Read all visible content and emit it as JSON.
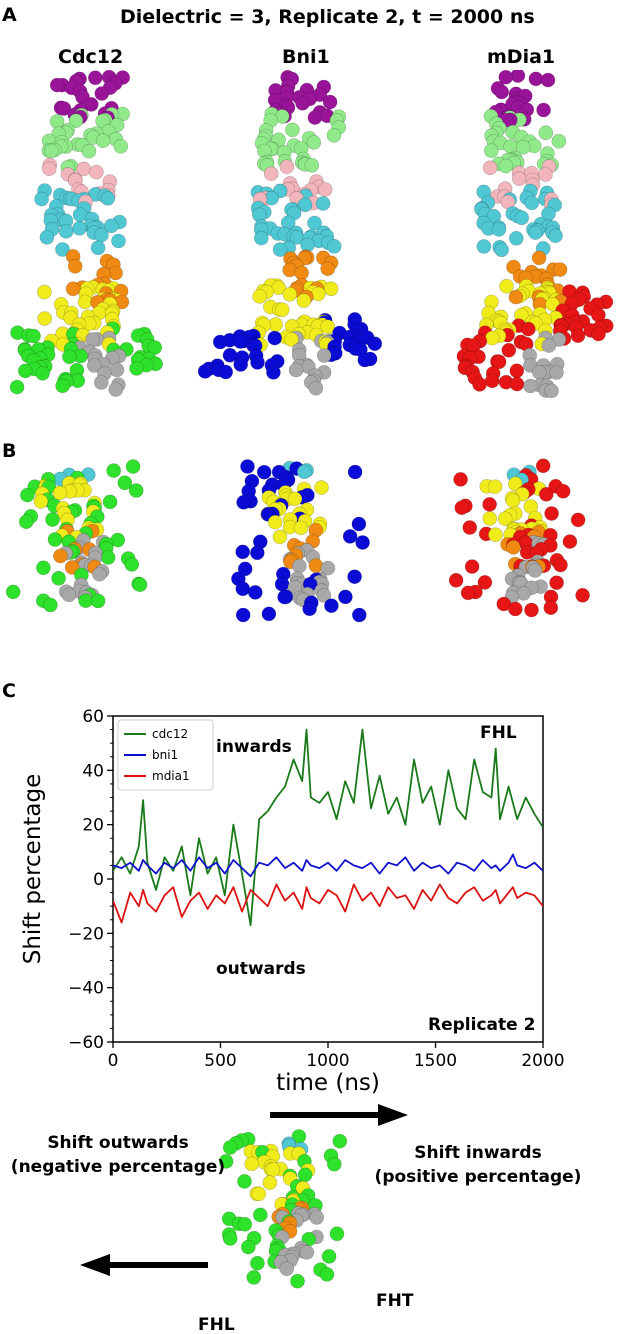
{
  "figure": {
    "title": "Dielectric = 3, Replicate 2, t = 2000 ns",
    "panels": {
      "a": "A",
      "b": "B",
      "c": "C"
    },
    "proteins": [
      "Cdc12",
      "Bni1",
      "mDia1"
    ]
  },
  "colors": {
    "purple": "#9a149a",
    "lightgreen": "#90ea8a",
    "pink": "#f2b5bb",
    "cyan": "#4fc8d4",
    "orange": "#f08a12",
    "yellow": "#f0ec1c",
    "green": "#2ee12a",
    "blue": "#0b0bd6",
    "red": "#e61616",
    "gray": "#a8a8a8"
  },
  "chart_data": {
    "type": "line",
    "xlabel": "time (ns)",
    "ylabel": "Shift percentage",
    "xlim": [
      0,
      2000
    ],
    "ylim": [
      -60,
      60
    ],
    "xticks": [
      0,
      500,
      1000,
      1500,
      2000
    ],
    "yticks": [
      60,
      40,
      20,
      0,
      -20,
      -40,
      -60
    ],
    "legend_position": "top-left",
    "annotations": {
      "inwards": "inwards",
      "outwards": "outwards",
      "fhl": "FHL",
      "replicate": "Replicate 2"
    },
    "x": [
      0,
      40,
      80,
      120,
      140,
      160,
      200,
      240,
      280,
      320,
      360,
      400,
      440,
      480,
      520,
      560,
      600,
      640,
      680,
      720,
      760,
      800,
      840,
      880,
      900,
      920,
      960,
      1000,
      1040,
      1080,
      1120,
      1160,
      1200,
      1240,
      1280,
      1320,
      1360,
      1400,
      1440,
      1480,
      1520,
      1560,
      1600,
      1640,
      1680,
      1720,
      1760,
      1780,
      1800,
      1840,
      1860,
      1880,
      1920,
      1960,
      2000
    ],
    "series": [
      {
        "name": "cdc12",
        "color": "#1a7a1a",
        "values": [
          3,
          8,
          2,
          12,
          29,
          6,
          -4,
          8,
          3,
          12,
          -6,
          15,
          2,
          8,
          -6,
          20,
          2,
          -17,
          22,
          25,
          30,
          34,
          44,
          36,
          55,
          30,
          28,
          32,
          22,
          36,
          28,
          55,
          26,
          38,
          24,
          30,
          20,
          44,
          28,
          34,
          20,
          40,
          26,
          22,
          44,
          32,
          30,
          48,
          22,
          34,
          28,
          22,
          30,
          24,
          19
        ]
      },
      {
        "name": "bni1",
        "color": "#1010cc",
        "values": [
          5,
          4,
          6,
          3,
          7,
          5,
          2,
          6,
          4,
          7,
          3,
          8,
          4,
          6,
          2,
          7,
          4,
          1,
          6,
          5,
          8,
          4,
          6,
          3,
          7,
          5,
          4,
          6,
          3,
          7,
          5,
          4,
          6,
          2,
          6,
          5,
          8,
          3,
          6,
          4,
          5,
          2,
          6,
          5,
          3,
          7,
          4,
          5,
          3,
          6,
          9,
          5,
          4,
          6,
          3
        ]
      },
      {
        "name": "mdia1",
        "color": "#dd1111",
        "values": [
          -8,
          -16,
          -5,
          -10,
          -4,
          -9,
          -12,
          -6,
          -3,
          -14,
          -8,
          -5,
          -11,
          -6,
          -9,
          -3,
          -12,
          -4,
          -7,
          -10,
          -2,
          -8,
          -5,
          -11,
          -3,
          -7,
          -9,
          -4,
          -6,
          -12,
          -2,
          -8,
          -5,
          -10,
          -3,
          -7,
          -6,
          -11,
          -4,
          -8,
          -2,
          -7,
          -9,
          -5,
          -3,
          -8,
          -6,
          -4,
          -9,
          -5,
          -3,
          -7,
          -5,
          -6,
          -10
        ]
      }
    ]
  },
  "schematic": {
    "shift_outwards": "Shift outwards",
    "shift_outwards_note": "(negative percentage)",
    "shift_inwards": "Shift inwards",
    "shift_inwards_note": "(positive percentage)",
    "fht": "FHT",
    "fhl": "FHL"
  }
}
